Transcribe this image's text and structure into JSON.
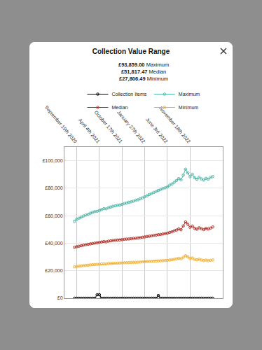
{
  "chart_data": {
    "type": "line",
    "title": "Collection Value Range",
    "subtitle": [
      "£93,859.00 Maximum",
      "£51,817.47 Median",
      "£27,806.49 Minimum"
    ],
    "categories": [
      null,
      "September 19th 2020",
      null,
      null,
      null,
      null,
      null,
      null,
      null,
      null,
      null,
      "April 4th 2021",
      null,
      null,
      null,
      null,
      null,
      null,
      null,
      null,
      null,
      "October 17th 2021",
      null,
      null,
      null,
      null,
      null,
      null,
      null,
      null,
      null,
      "January 27th 2022",
      null,
      null,
      null,
      null,
      null,
      null,
      null,
      null,
      null,
      "June 3rd 2022",
      null,
      null,
      null,
      null,
      null,
      null,
      null,
      null,
      null,
      "November 18th 2022",
      null,
      null,
      null,
      null,
      null,
      null,
      null,
      null,
      null,
      null
    ],
    "series": [
      {
        "name": "Collection Items",
        "color": "#000000",
        "marker": "circle-open",
        "line_style": "solid",
        "values": [
          0,
          0,
          0,
          0,
          0,
          0,
          0,
          0,
          0,
          0,
          2500,
          2500,
          0,
          0,
          0,
          0,
          0,
          0,
          0,
          0,
          0,
          0,
          0,
          0,
          0,
          0,
          0,
          0,
          0,
          0,
          0,
          0,
          0,
          0,
          0,
          0,
          0,
          2000,
          0,
          0,
          0,
          0,
          0,
          0,
          0,
          0,
          0,
          0,
          0,
          0,
          0,
          0,
          0,
          0,
          0,
          0,
          0,
          0,
          0,
          0,
          0,
          0
        ]
      },
      {
        "name": "Maximum",
        "color": "#4fb9a9",
        "marker": "circle-open",
        "line_style": "solid",
        "values": [
          56000,
          57500,
          58200,
          59000,
          59800,
          60500,
          61000,
          61800,
          62500,
          63000,
          63200,
          63800,
          64500,
          65200,
          65000,
          65800,
          66300,
          66900,
          67200,
          67600,
          67800,
          68200,
          68900,
          69300,
          69800,
          70100,
          70600,
          71200,
          71600,
          72300,
          73000,
          73800,
          74500,
          75400,
          76200,
          77000,
          77600,
          78400,
          79100,
          79800,
          80300,
          81000,
          82200,
          83100,
          84300,
          85600,
          87000,
          86200,
          89500,
          93859,
          91200,
          88400,
          90100,
          87600,
          86500,
          87900,
          86800,
          85900,
          87200,
          86600,
          87800,
          88500
        ]
      },
      {
        "name": "Median",
        "color": "#b2332b",
        "marker": "circle-open",
        "line_style": "solid",
        "values": [
          37000,
          37500,
          37800,
          38200,
          38600,
          38900,
          39200,
          39500,
          39800,
          40100,
          40300,
          40600,
          40900,
          41200,
          41000,
          41500,
          41700,
          42000,
          42200,
          42300,
          42400,
          42600,
          42800,
          43000,
          43100,
          43300,
          43500,
          43600,
          43800,
          44000,
          44300,
          44600,
          44900,
          45100,
          45400,
          45700,
          45900,
          46200,
          46400,
          46700,
          47000,
          47300,
          47900,
          48300,
          49000,
          49600,
          50400,
          49800,
          52600,
          55500,
          53800,
          51600,
          52500,
          50800,
          50200,
          51200,
          50600,
          49900,
          50800,
          50300,
          51000,
          51817
        ]
      },
      {
        "name": "Minimum",
        "color": "#f2b233",
        "marker": "circle-open",
        "line_style": "solid",
        "values": [
          22800,
          23100,
          23300,
          23500,
          23700,
          23900,
          24000,
          24200,
          24400,
          24500,
          24600,
          24700,
          24900,
          25000,
          24900,
          25200,
          25300,
          25400,
          25500,
          25500,
          25600,
          25700,
          25800,
          25800,
          25900,
          26000,
          26100,
          26100,
          26200,
          26300,
          26400,
          26500,
          26600,
          26700,
          26800,
          26900,
          27000,
          27100,
          27200,
          27300,
          27400,
          27500,
          27800,
          28000,
          28300,
          28600,
          29000,
          28700,
          29800,
          30900,
          30100,
          28900,
          29300,
          28200,
          27900,
          28400,
          27800,
          27400,
          27700,
          27300,
          27600,
          27806
        ]
      }
    ],
    "ylim": [
      0,
      110000
    ],
    "yticks": [
      {
        "value": 0,
        "label": "£0"
      },
      {
        "value": 20000,
        "label": "£20,000"
      },
      {
        "value": 40000,
        "label": "£40,000"
      },
      {
        "value": 60000,
        "label": "£60,000"
      },
      {
        "value": 80000,
        "label": "£80,000"
      },
      {
        "value": 100000,
        "label": "£100,000"
      }
    ],
    "grid": true,
    "legend": "top"
  }
}
